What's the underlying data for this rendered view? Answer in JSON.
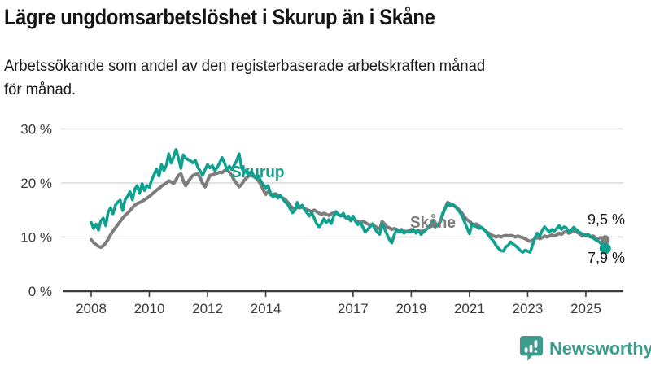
{
  "footer": {
    "brand": "Newsworthy",
    "brand_color": "#3e9c8d",
    "logo_icon": "bar-chart-speech-bubble"
  },
  "chart_data": {
    "type": "line",
    "title": "Lägre ungdomsarbetslöshet i Skurup än i Skåne",
    "subtitle": "Arbetssökande som andel av den registerbaserade arbetskraften månad för månad.",
    "subtitle_lines": [
      "Arbetssökande som andel av den registerbaserade arbetskraften månad",
      "för månad."
    ],
    "xlabel": "",
    "ylabel": "",
    "unit": "%",
    "frequency": "monthly",
    "start": "2008-01",
    "end": "2025-09",
    "ylim": [
      0,
      30
    ],
    "yticks": [
      0,
      10,
      20,
      30
    ],
    "ytick_labels": [
      "0 %",
      "10 %",
      "20 %",
      "30 %"
    ],
    "xticks": [
      2008,
      2010,
      2012,
      2014,
      2017,
      2019,
      2021,
      2023,
      2025
    ],
    "grid": "horizontal",
    "legend_position": "inline",
    "colors": {
      "grid": "#d9d9d9",
      "axis": "#3c3c3c",
      "tick_text": "#3a3a3a"
    },
    "series": [
      {
        "name": "Skåne",
        "color": "#7d7d7d",
        "end_value": 9.5,
        "end_label": "9,5 %",
        "values": [
          9.5,
          9.0,
          8.6,
          8.3,
          8.1,
          8.4,
          8.9,
          9.6,
          10.4,
          11.1,
          11.7,
          12.3,
          12.9,
          13.5,
          14.0,
          14.4,
          14.9,
          15.4,
          15.9,
          16.2,
          16.4,
          16.6,
          16.9,
          17.2,
          17.5,
          17.9,
          18.3,
          18.7,
          19.0,
          19.4,
          19.7,
          20.0,
          20.4,
          20.2,
          19.9,
          20.6,
          21.4,
          21.7,
          20.4,
          19.5,
          20.2,
          20.9,
          21.4,
          21.6,
          21.7,
          20.9,
          19.9,
          19.3,
          20.4,
          21.4,
          21.5,
          21.7,
          21.8,
          22.0,
          21.9,
          22.3,
          22.4,
          22.0,
          21.4,
          20.5,
          19.9,
          19.3,
          19.7,
          20.4,
          20.9,
          21.3,
          21.4,
          21.2,
          20.9,
          20.4,
          19.7,
          18.7,
          17.9,
          18.4,
          17.8,
          17.9,
          18.0,
          17.8,
          17.5,
          17.2,
          17.0,
          16.5,
          15.9,
          15.4,
          15.2,
          15.5,
          15.4,
          15.6,
          15.3,
          15.1,
          14.9,
          14.7,
          15.0,
          14.7,
          14.4,
          14.2,
          14.4,
          14.2,
          14.0,
          14.3,
          14.5,
          14.4,
          14.2,
          13.9,
          14.0,
          13.7,
          13.4,
          13.2,
          13.4,
          13.1,
          12.9,
          12.7,
          12.9,
          12.7,
          12.4,
          12.2,
          12.4,
          12.0,
          11.7,
          11.5,
          12.9,
          12.4,
          11.9,
          11.7,
          11.4,
          11.6,
          11.4,
          11.2,
          11.4,
          11.2,
          11.0,
          11.2,
          11.4,
          11.2,
          11.0,
          11.2,
          11.0,
          11.2,
          11.4,
          11.7,
          12.0,
          12.2,
          11.9,
          12.2,
          12.9,
          14.2,
          15.4,
          16.4,
          16.2,
          16.0,
          15.7,
          15.4,
          14.9,
          14.4,
          13.7,
          13.2,
          12.9,
          12.5,
          12.3,
          12.4,
          12.0,
          11.7,
          11.4,
          11.0,
          10.7,
          10.4,
          10.2,
          10.0,
          10.2,
          10.0,
          10.2,
          10.3,
          10.2,
          10.3,
          10.2,
          10.0,
          10.2,
          10.0,
          9.9,
          9.7,
          9.4,
          9.2,
          9.4,
          9.7,
          9.9,
          9.7,
          9.9,
          10.2,
          10.0,
          10.2,
          10.4,
          10.2,
          10.4,
          10.7,
          10.5,
          10.9,
          11.0,
          10.7,
          10.9,
          11.2,
          11.0,
          10.7,
          10.4,
          10.2,
          10.4,
          10.2,
          10.0,
          10.2,
          9.9,
          9.7,
          9.9,
          9.7,
          9.5
        ]
      },
      {
        "name": "Skurup",
        "color": "#10a08f",
        "end_value": 7.9,
        "end_label": "7,9 %",
        "values": [
          12.7,
          11.6,
          12.4,
          11.3,
          13.0,
          13.5,
          12.1,
          14.6,
          15.4,
          14.3,
          15.9,
          16.5,
          16.8,
          14.9,
          16.9,
          17.5,
          18.4,
          16.9,
          18.9,
          19.5,
          18.1,
          19.9,
          18.6,
          19.5,
          19.2,
          20.6,
          21.6,
          22.6,
          21.3,
          23.4,
          22.3,
          23.3,
          25.4,
          23.7,
          24.8,
          26.2,
          24.6,
          22.7,
          25.2,
          24.6,
          24.3,
          24.1,
          23.7,
          24.2,
          22.9,
          22.2,
          21.4,
          22.5,
          23.4,
          22.8,
          23.2,
          22.3,
          22.9,
          23.7,
          24.7,
          23.7,
          22.4,
          23.1,
          22.5,
          23.3,
          24.1,
          25.4,
          22.9,
          21.9,
          22.4,
          21.7,
          22.1,
          21.4,
          20.9,
          21.3,
          20.3,
          19.7,
          19.1,
          19.5,
          18.1,
          17.4,
          17.8,
          17.2,
          17.7,
          17.1,
          16.5,
          16.1,
          15.3,
          14.5,
          14.9,
          16.4,
          15.5,
          15.9,
          15.1,
          14.5,
          13.9,
          14.5,
          13.5,
          12.5,
          11.9,
          12.5,
          13.4,
          12.7,
          13.2,
          12.5,
          13.8,
          14.7,
          14.1,
          13.9,
          14.4,
          13.5,
          13.9,
          13.0,
          13.9,
          12.9,
          12.3,
          12.7,
          11.9,
          10.9,
          11.4,
          11.9,
          12.4,
          11.5,
          10.9,
          10.5,
          12.4,
          11.5,
          10.5,
          9.5,
          8.9,
          10.4,
          11.4,
          10.9,
          11.2,
          10.7,
          11.0,
          10.9,
          11.0,
          11.4,
          10.7,
          11.2,
          10.5,
          10.9,
          11.3,
          11.8,
          12.3,
          13.1,
          12.5,
          12.1,
          12.8,
          14.5,
          15.3,
          16.2,
          15.8,
          16.1,
          15.7,
          15.2,
          14.6,
          13.9,
          12.8,
          11.7,
          10.6,
          12.4,
          12.1,
          11.9,
          11.6,
          11.8,
          11.4,
          10.9,
          10.2,
          9.7,
          9.2,
          8.4,
          7.9,
          7.5,
          7.4,
          8.2,
          8.5,
          9.1,
          8.7,
          8.4,
          8.0,
          7.5,
          7.2,
          7.6,
          7.4,
          7.2,
          8.5,
          9.9,
          10.7,
          10.2,
          11.2,
          11.9,
          11.4,
          10.9,
          11.4,
          11.1,
          11.6,
          12.1,
          11.4,
          11.9,
          11.7,
          10.9,
          11.3,
          11.8,
          11.4,
          11.0,
          10.7,
          10.5,
          10.3,
          10.5,
          10.1,
          9.8,
          9.5,
          9.3,
          8.9,
          8.5,
          7.9
        ]
      }
    ],
    "annotations": [
      {
        "text": "Skurup",
        "color": "#10a08f",
        "near_year": 2012.9,
        "near_pct": 21.6
      },
      {
        "text": "Skåne",
        "color": "#7d7d7d",
        "near_year": 2019.0,
        "near_pct": 12.3
      }
    ]
  }
}
